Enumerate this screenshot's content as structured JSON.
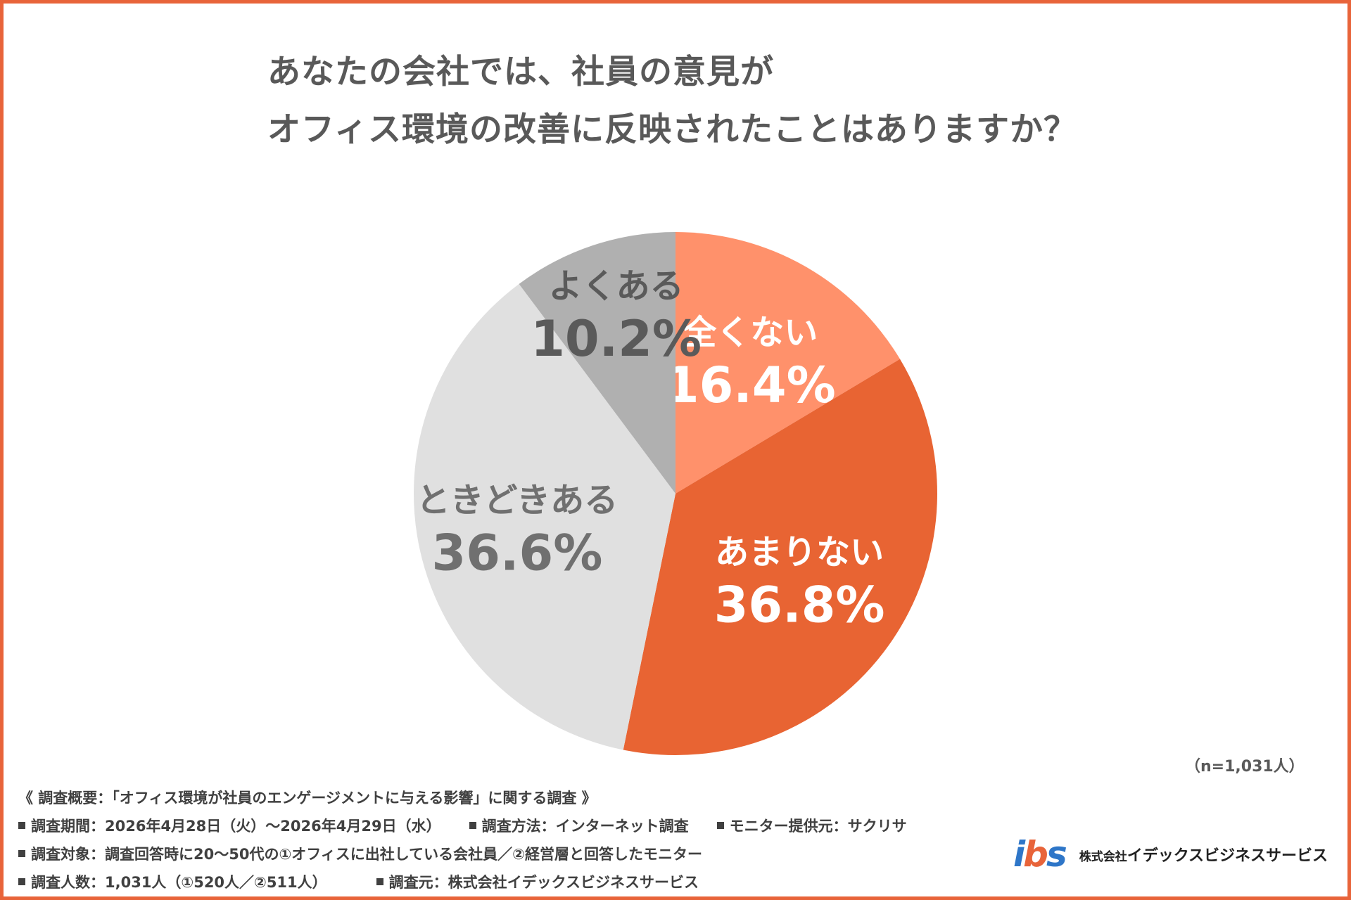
{
  "title_line1": "あなたの会社では、社員の意見が",
  "title_line2": "オフィス環境の改善に反映されたことはありますか？",
  "chart_data": {
    "type": "pie",
    "start_angle": "12 o'clock",
    "direction": "clockwise",
    "slices": [
      {
        "label": "全くない",
        "value": 16.4,
        "value_label": "16.4%",
        "color": "#ff916b",
        "text_color": "#ffffff"
      },
      {
        "label": "あまりない",
        "value": 36.8,
        "value_label": "36.8%",
        "color": "#e86433",
        "text_color": "#ffffff"
      },
      {
        "label": "ときどきある",
        "value": 36.6,
        "value_label": "36.6%",
        "color": "#e0e0e0",
        "text_color": "#707070"
      },
      {
        "label": "よくある",
        "value": 10.2,
        "value_label": "10.2%",
        "color": "#b0b0b0",
        "text_color": "#5a5a5a"
      }
    ]
  },
  "sample_size": "（n=1,031人）",
  "notes": {
    "heading": "《 調査概要：「オフィス環境が社員のエンゲージメントに与える影響」に関する調査 》",
    "period": "調査期間：2026年4月28日（火）～2026年4月29日（水）",
    "method": "調査方法：インターネット調査",
    "monitor": "モニター提供元：サクリサ",
    "target": "調査対象：調査回答時に20～50代の①オフィスに出社している会社員／②経営層と回答したモニター",
    "count": "調査人数：1,031人（①520人／②511人）",
    "source": "調査元：株式会社イデックスビジネスサービス"
  },
  "logo": {
    "mark_i": "i",
    "mark_b": "b",
    "mark_s": "s",
    "company_prefix": "株式会社",
    "company_name": "イデックスビジネスサービス"
  },
  "colors": {
    "frame": "#e8643a",
    "title_text": "#595959",
    "logo_blue": "#2e76c8"
  }
}
